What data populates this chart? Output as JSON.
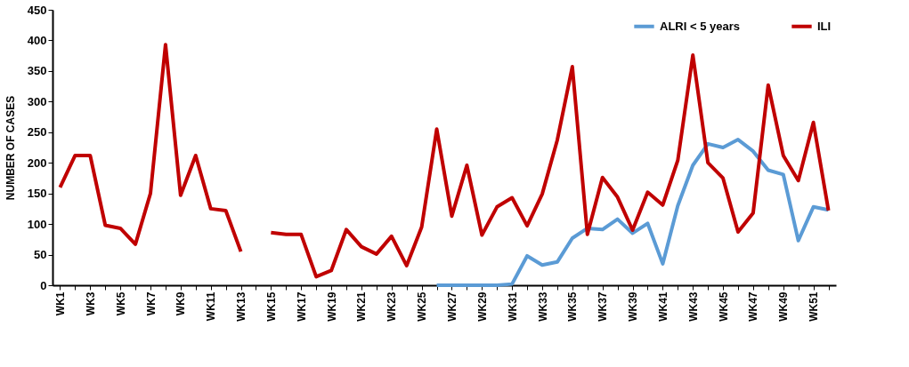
{
  "chart_data": {
    "type": "line",
    "ylabel": "NUMBER OF CASES",
    "categories": [
      "WK1",
      null,
      "WK3",
      null,
      "WK5",
      null,
      "WK7",
      null,
      "WK9",
      null,
      "WK11",
      null,
      "WK13",
      null,
      "WK15",
      null,
      "WK17",
      null,
      "WK19",
      null,
      "WK21",
      null,
      "WK23",
      null,
      "WK25",
      null,
      "WK27",
      null,
      "WK29",
      null,
      "WK31",
      null,
      "WK33",
      null,
      "WK35",
      null,
      "WK37",
      null,
      "WK39",
      null,
      "WK41",
      null,
      "WK43",
      null,
      "WK45",
      null,
      "WK47",
      null,
      "WK49",
      null,
      "WK51",
      null
    ],
    "series": [
      {
        "name": "ALRI < 5 years",
        "color": "#5b9bd5",
        "values": [
          null,
          null,
          null,
          null,
          null,
          null,
          null,
          null,
          null,
          null,
          null,
          null,
          null,
          null,
          null,
          null,
          null,
          null,
          null,
          null,
          null,
          null,
          null,
          null,
          null,
          0,
          0,
          0,
          0,
          0,
          2,
          48,
          33,
          38,
          77,
          93,
          91,
          108,
          85,
          101,
          35,
          130,
          196,
          231,
          225,
          238,
          219,
          188,
          181,
          73,
          128,
          123
        ]
      },
      {
        "name": "ILI",
        "color": "#c00000",
        "values": [
          160,
          212,
          212,
          98,
          93,
          67,
          150,
          393,
          147,
          212,
          125,
          122,
          55,
          null,
          86,
          83,
          83,
          14,
          24,
          91,
          63,
          51,
          80,
          32,
          95,
          255,
          113,
          196,
          82,
          128,
          143,
          97,
          149,
          237,
          357,
          83,
          176,
          144,
          90,
          152,
          131,
          204,
          376,
          200,
          175,
          87,
          118,
          327,
          212,
          171,
          266,
          122
        ]
      }
    ],
    "ylim": [
      0,
      450
    ],
    "yticks": [
      0,
      50,
      100,
      150,
      200,
      250,
      300,
      350,
      400,
      450
    ],
    "grid": false,
    "legend": "top right",
    "line_style": "solid",
    "marker": "none"
  }
}
